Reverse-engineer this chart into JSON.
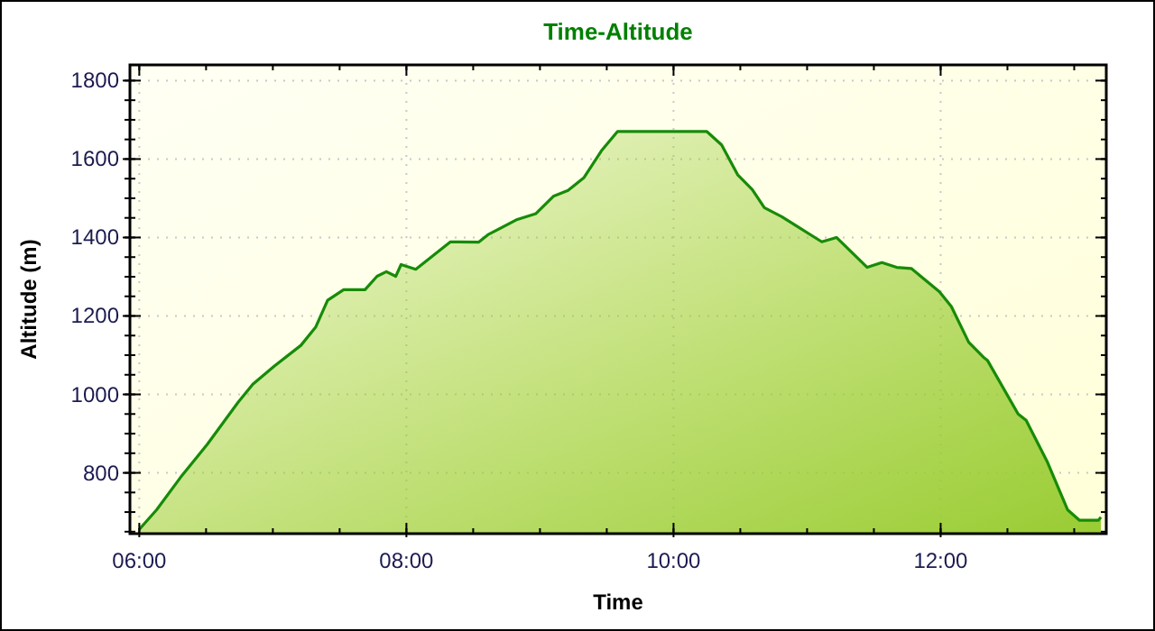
{
  "chart_data": {
    "type": "area",
    "title": "Time-Altitude",
    "xlabel": "Time",
    "ylabel": "Altitude (m)",
    "x": [
      6.0,
      6.13,
      6.31,
      6.51,
      6.74,
      6.85,
      7.01,
      7.21,
      7.32,
      7.41,
      7.53,
      7.69,
      7.78,
      7.85,
      7.92,
      7.96,
      8.07,
      8.2,
      8.33,
      8.54,
      8.61,
      8.83,
      8.97,
      9.1,
      9.21,
      9.33,
      9.46,
      9.58,
      10.25,
      10.36,
      10.48,
      10.59,
      10.68,
      10.81,
      10.95,
      11.11,
      11.22,
      11.45,
      11.56,
      11.67,
      11.78,
      11.99,
      12.08,
      12.21,
      12.32,
      12.35,
      12.58,
      12.64,
      12.8,
      12.95,
      13.04,
      13.18,
      13.2
    ],
    "series": [
      {
        "color": "#99cc33",
        "values": [
          656,
          706,
          789,
          873,
          980,
          1026,
          1072,
          1125,
          1171,
          1240,
          1267,
          1267,
          1301,
          1313,
          1301,
          1331,
          1319,
          1354,
          1389,
          1388,
          1407,
          1446,
          1461,
          1505,
          1520,
          1553,
          1621,
          1670,
          1670,
          1636,
          1560,
          1522,
          1476,
          1453,
          1423,
          1389,
          1400,
          1324,
          1336,
          1324,
          1321,
          1262,
          1224,
          1133,
          1095,
          1087,
          950,
          934,
          827,
          706,
          679,
          679,
          687
        ]
      }
    ],
    "xlim": [
      5.93,
      13.24
    ],
    "ylim": [
      645,
      1840
    ],
    "xticks": [
      {
        "value": 6,
        "label": "06:00"
      },
      {
        "value": 8,
        "label": "08:00"
      },
      {
        "value": 10,
        "label": "10:00"
      },
      {
        "value": 12,
        "label": "12:00"
      }
    ],
    "yticks": [
      800,
      1000,
      1200,
      1400,
      1600,
      1800
    ],
    "grid": true
  }
}
